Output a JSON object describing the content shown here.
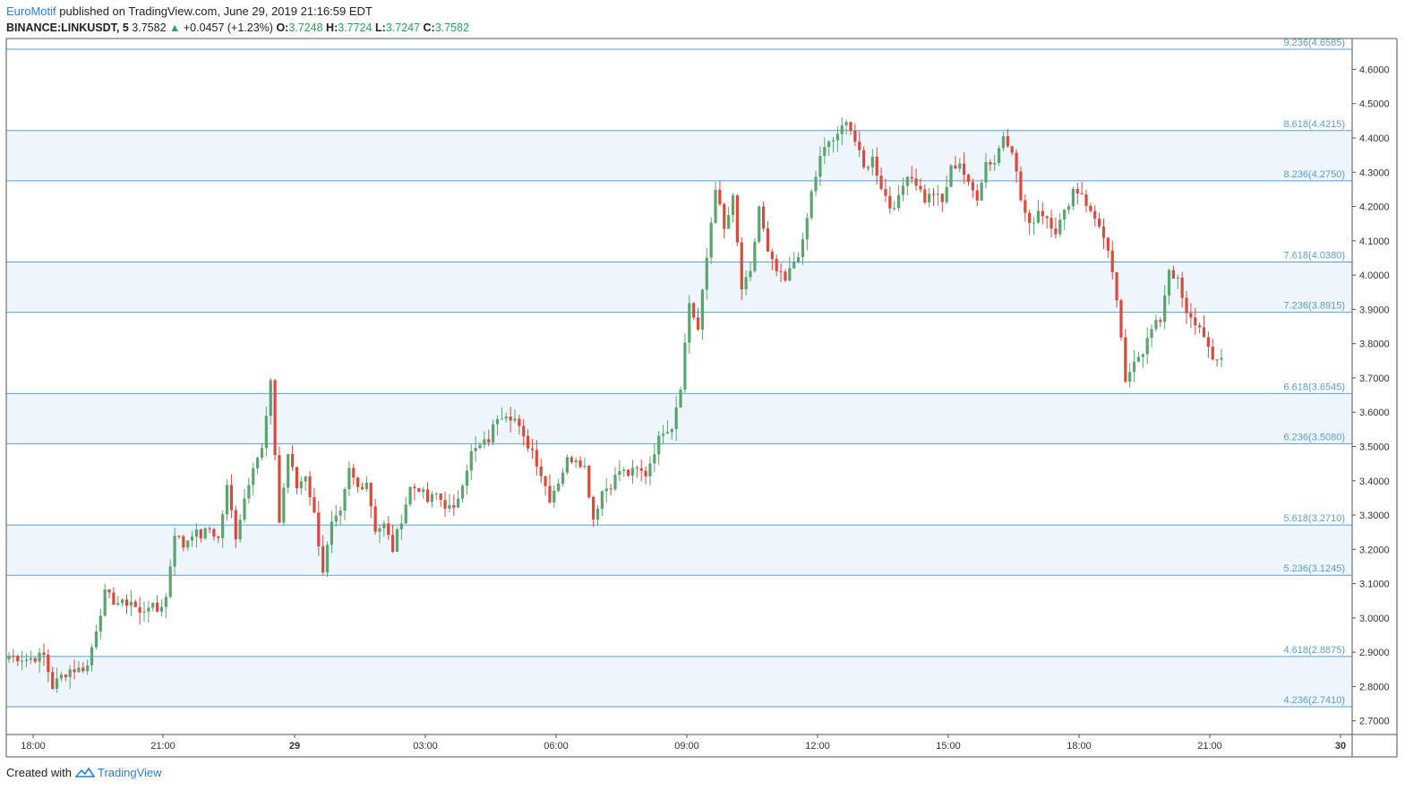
{
  "header": {
    "author": "EuroMotif",
    "published": "published on TradingView.com, June 29, 2019 21:16:59 EDT",
    "symbol": "BINANCE:LINKUSDT, 5",
    "last": "3.7582",
    "change": "+0.0457 (+1.23%)",
    "o_label": "O:",
    "o": "3.7248",
    "h_label": "H:",
    "h": "3.7724",
    "l_label": "L:",
    "l": "3.7247",
    "c_label": "C:",
    "c": "3.7582"
  },
  "footer": {
    "created_with": "Created with",
    "brand": "TradingView"
  },
  "colors": {
    "up": "#5aa56e",
    "down": "#d94a3c",
    "level_line": "#5a9fd4",
    "band": "#eef5fc",
    "label": "#5a9fd4"
  },
  "chart_data": {
    "type": "candlestick",
    "interval": "5",
    "y_ticks": [
      "2.7000",
      "2.8000",
      "2.9000",
      "3.0000",
      "3.1000",
      "3.2000",
      "3.3000",
      "3.4000",
      "3.5000",
      "3.6000",
      "3.7000",
      "3.8000",
      "3.9000",
      "4.0000",
      "4.1000",
      "4.2000",
      "4.3000",
      "4.4000",
      "4.5000",
      "4.6000"
    ],
    "ylim": [
      2.66,
      4.69
    ],
    "x_ticks": [
      "18:00",
      "21:00",
      "29",
      "03:00",
      "06:00",
      "09:00",
      "12:00",
      "15:00",
      "18:00",
      "21:00",
      "30"
    ],
    "fib_levels": [
      {
        "label": "9.236(4.6585)",
        "value": 4.6585
      },
      {
        "label": "8.618(4.4215)",
        "value": 4.4215
      },
      {
        "label": "8.236(4.2750)",
        "value": 4.275
      },
      {
        "label": "7.618(4.0380)",
        "value": 4.038
      },
      {
        "label": "7.236(3.8915)",
        "value": 3.8915
      },
      {
        "label": "6.618(3.6545)",
        "value": 3.6545
      },
      {
        "label": "6.236(3.5080)",
        "value": 3.508
      },
      {
        "label": "5.618(3.2710)",
        "value": 3.271
      },
      {
        "label": "5.236(3.1245)",
        "value": 3.1245
      },
      {
        "label": "4.618(2.8875)",
        "value": 2.8875
      },
      {
        "label": "4.236(2.7410)",
        "value": 2.741
      }
    ],
    "shaded_bands": [
      [
        4.275,
        4.4215
      ],
      [
        3.8915,
        4.038
      ],
      [
        3.508,
        3.6545
      ],
      [
        3.1245,
        3.271
      ],
      [
        2.741,
        2.8875
      ]
    ],
    "anchors": [
      [
        0,
        2.89
      ],
      [
        4,
        2.88
      ],
      [
        8,
        2.89
      ],
      [
        10,
        2.8
      ],
      [
        12,
        2.83
      ],
      [
        14,
        2.85
      ],
      [
        16,
        2.85
      ],
      [
        18,
        2.86
      ],
      [
        20,
        2.97
      ],
      [
        22,
        3.07
      ],
      [
        24,
        3.05
      ],
      [
        26,
        3.04
      ],
      [
        28,
        3.05
      ],
      [
        30,
        3.01
      ],
      [
        32,
        3.04
      ],
      [
        34,
        3.02
      ],
      [
        36,
        3.06
      ],
      [
        38,
        3.25
      ],
      [
        40,
        3.21
      ],
      [
        42,
        3.25
      ],
      [
        44,
        3.24
      ],
      [
        46,
        3.26
      ],
      [
        48,
        3.23
      ],
      [
        50,
        3.38
      ],
      [
        52,
        3.24
      ],
      [
        54,
        3.35
      ],
      [
        56,
        3.45
      ],
      [
        58,
        3.49
      ],
      [
        60,
        3.68
      ],
      [
        62,
        3.28
      ],
      [
        64,
        3.48
      ],
      [
        66,
        3.38
      ],
      [
        68,
        3.42
      ],
      [
        70,
        3.3
      ],
      [
        72,
        3.14
      ],
      [
        74,
        3.27
      ],
      [
        76,
        3.3
      ],
      [
        78,
        3.43
      ],
      [
        80,
        3.38
      ],
      [
        82,
        3.4
      ],
      [
        84,
        3.26
      ],
      [
        86,
        3.27
      ],
      [
        88,
        3.2
      ],
      [
        90,
        3.29
      ],
      [
        92,
        3.38
      ],
      [
        94,
        3.38
      ],
      [
        96,
        3.34
      ],
      [
        98,
        3.36
      ],
      [
        100,
        3.33
      ],
      [
        102,
        3.31
      ],
      [
        104,
        3.4
      ],
      [
        106,
        3.48
      ],
      [
        108,
        3.5
      ],
      [
        110,
        3.52
      ],
      [
        112,
        3.59
      ],
      [
        114,
        3.6
      ],
      [
        116,
        3.58
      ],
      [
        118,
        3.52
      ],
      [
        120,
        3.49
      ],
      [
        122,
        3.42
      ],
      [
        124,
        3.35
      ],
      [
        126,
        3.4
      ],
      [
        128,
        3.46
      ],
      [
        130,
        3.47
      ],
      [
        132,
        3.44
      ],
      [
        134,
        3.29
      ],
      [
        136,
        3.37
      ],
      [
        138,
        3.39
      ],
      [
        140,
        3.43
      ],
      [
        142,
        3.42
      ],
      [
        144,
        3.43
      ],
      [
        146,
        3.42
      ],
      [
        148,
        3.49
      ],
      [
        150,
        3.55
      ],
      [
        152,
        3.56
      ],
      [
        154,
        3.68
      ],
      [
        156,
        3.92
      ],
      [
        158,
        3.84
      ],
      [
        160,
        4.05
      ],
      [
        162,
        4.26
      ],
      [
        164,
        4.13
      ],
      [
        166,
        4.22
      ],
      [
        168,
        3.96
      ],
      [
        170,
        4.0
      ],
      [
        172,
        4.2
      ],
      [
        174,
        4.06
      ],
      [
        176,
        4.01
      ],
      [
        178,
        3.98
      ],
      [
        180,
        4.04
      ],
      [
        182,
        4.09
      ],
      [
        184,
        4.24
      ],
      [
        186,
        4.34
      ],
      [
        188,
        4.39
      ],
      [
        190,
        4.4
      ],
      [
        192,
        4.46
      ],
      [
        194,
        4.39
      ],
      [
        196,
        4.31
      ],
      [
        198,
        4.34
      ],
      [
        200,
        4.26
      ],
      [
        202,
        4.2
      ],
      [
        204,
        4.22
      ],
      [
        206,
        4.3
      ],
      [
        208,
        4.27
      ],
      [
        210,
        4.22
      ],
      [
        212,
        4.24
      ],
      [
        214,
        4.21
      ],
      [
        216,
        4.31
      ],
      [
        218,
        4.33
      ],
      [
        220,
        4.26
      ],
      [
        222,
        4.23
      ],
      [
        224,
        4.33
      ],
      [
        226,
        4.33
      ],
      [
        228,
        4.41
      ],
      [
        230,
        4.37
      ],
      [
        232,
        4.22
      ],
      [
        234,
        4.14
      ],
      [
        236,
        4.19
      ],
      [
        238,
        4.17
      ],
      [
        240,
        4.13
      ],
      [
        242,
        4.18
      ],
      [
        244,
        4.25
      ],
      [
        246,
        4.24
      ],
      [
        248,
        4.18
      ],
      [
        250,
        4.15
      ],
      [
        252,
        4.06
      ],
      [
        254,
        3.93
      ],
      [
        256,
        3.68
      ],
      [
        258,
        3.76
      ],
      [
        260,
        3.78
      ],
      [
        262,
        3.84
      ],
      [
        264,
        3.87
      ],
      [
        266,
        4.02
      ],
      [
        268,
        3.98
      ],
      [
        270,
        3.88
      ],
      [
        272,
        3.86
      ],
      [
        274,
        3.83
      ],
      [
        276,
        3.74
      ],
      [
        278,
        3.76
      ]
    ],
    "last_price": 3.7582
  }
}
